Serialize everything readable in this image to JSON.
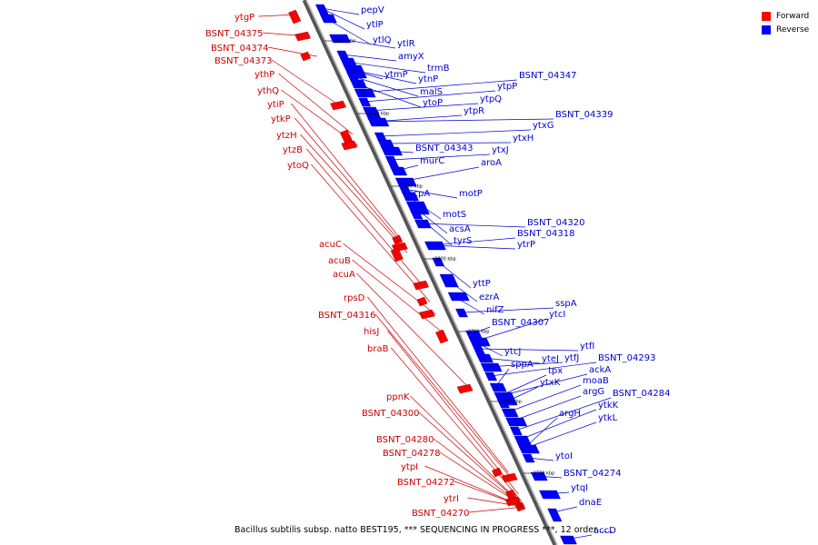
{
  "caption": "Bacillus subtilis subsp. natto BEST195, *** SEQUENCING IN PROGRESS ***, 12 order......",
  "legend": [
    {
      "label": "Forward",
      "color": "#ff0000"
    },
    {
      "label": "Reverse",
      "color": "#0000ff"
    }
  ],
  "colors": {
    "forward_label": "#cc0000",
    "reverse_label": "#0000cc",
    "forward_gene": "#ff0000",
    "reverse_gene": "#0000ff"
  },
  "ticks": [
    "2830 kbp",
    "2820 kbp",
    "2810 kbp",
    "2800 kbp",
    "2790 kbp",
    "2780 kbp",
    "2770 kbp"
  ],
  "forward_genes": [
    "ytgP",
    "BSNT_04375",
    "BSNT_04374",
    "BSNT_04373",
    "ythP",
    "ythQ",
    "ytiP",
    "ytkP",
    "ytzH",
    "ytzB",
    "ytoQ",
    "acuC",
    "acuB",
    "acuA",
    "rpsD",
    "BSNT_04316",
    "hisJ",
    "braB",
    "ppnK",
    "BSNT_04300",
    "BSNT_04280",
    "BSNT_04278",
    "ytpI",
    "BSNT_04272",
    "ytrI",
    "BSNT_04270"
  ],
  "reverse_genes": [
    "pepV",
    "ytlP",
    "ytlQ",
    "ytlR",
    "amyX",
    "trmB",
    "ytmP",
    "ytnP",
    "malS",
    "ytoP",
    "BSNT_04347",
    "ytpP",
    "ytpQ",
    "ytpR",
    "BSNT_04339",
    "ytxG",
    "ytxH",
    "BSNT_04343",
    "ytxJ",
    "murC",
    "aroA",
    "ccpA",
    "motP",
    "motS",
    "acsA",
    "tyrS",
    "BSNT_04320",
    "BSNT_04318",
    "ytrP",
    "yttP",
    "ezrA",
    "nifZ",
    "sspA",
    "BSNT_04307",
    "ytcI",
    "ytcJ",
    "ytfI",
    "yteJ",
    "ytfJ",
    "BSNT_04293",
    "sppA",
    "tpx",
    "ackA",
    "ytxK",
    "moaB",
    "argG",
    "BSNT_04284",
    "ytkK",
    "argH",
    "ytkL",
    "ytoI",
    "BSNT_04274",
    "ytqI",
    "dnaE",
    "accD"
  ]
}
